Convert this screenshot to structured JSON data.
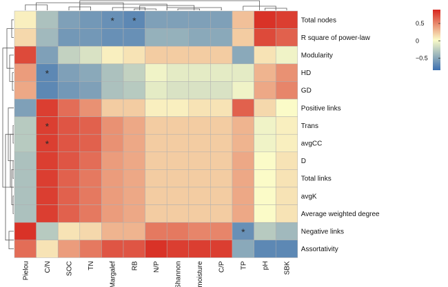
{
  "chart_data": {
    "type": "heatmap",
    "title": "",
    "rows": [
      "Total nodes",
      "R square of power-law",
      "Modularity",
      "HD",
      "GD",
      "Positive links",
      "Trans",
      "avgCC",
      "D",
      "Total links",
      "avgK",
      "Average weighted degree",
      "Negative links",
      "Assortativity"
    ],
    "columns": [
      "Pielou",
      "C/N",
      "SOC",
      "TN",
      "Margalef",
      "RB",
      "N/P",
      "Shannon",
      "moisture",
      "C/P",
      "TP",
      "pH",
      "SBK"
    ],
    "values": [
      [
        0.05,
        -0.35,
        -0.55,
        -0.6,
        -0.65,
        -0.7,
        -0.55,
        -0.55,
        -0.55,
        -0.55,
        0.25,
        0.85,
        0.8
      ],
      [
        0.15,
        -0.4,
        -0.6,
        -0.6,
        -0.65,
        -0.65,
        -0.45,
        -0.45,
        -0.5,
        -0.5,
        0.2,
        0.75,
        0.65
      ],
      [
        0.75,
        -0.55,
        -0.25,
        -0.15,
        0.05,
        0.1,
        0.2,
        0.2,
        0.2,
        0.2,
        -0.5,
        0.1,
        -0.05
      ],
      [
        0.4,
        -0.7,
        -0.55,
        -0.5,
        -0.35,
        -0.25,
        -0.05,
        -0.1,
        -0.1,
        -0.1,
        -0.1,
        0.3,
        0.45
      ],
      [
        0.35,
        -0.7,
        -0.6,
        -0.55,
        -0.35,
        -0.3,
        -0.1,
        -0.15,
        -0.15,
        -0.15,
        -0.05,
        0.35,
        0.5
      ],
      [
        -0.55,
        0.8,
        0.6,
        0.45,
        0.2,
        0.2,
        0.05,
        0.05,
        0.1,
        0.1,
        0.65,
        0.15,
        0.0
      ],
      [
        -0.3,
        0.8,
        0.7,
        0.65,
        0.45,
        0.35,
        0.2,
        0.2,
        0.2,
        0.2,
        0.3,
        -0.05,
        0.05
      ],
      [
        -0.3,
        0.8,
        0.7,
        0.65,
        0.45,
        0.35,
        0.2,
        0.2,
        0.2,
        0.2,
        0.3,
        -0.05,
        0.05
      ],
      [
        -0.35,
        0.8,
        0.7,
        0.6,
        0.4,
        0.35,
        0.2,
        0.2,
        0.2,
        0.2,
        0.35,
        0.0,
        0.1
      ],
      [
        -0.35,
        0.8,
        0.65,
        0.55,
        0.4,
        0.35,
        0.2,
        0.2,
        0.2,
        0.2,
        0.35,
        0.0,
        0.1
      ],
      [
        -0.35,
        0.8,
        0.65,
        0.55,
        0.4,
        0.35,
        0.2,
        0.2,
        0.2,
        0.2,
        0.35,
        0.0,
        0.1
      ],
      [
        -0.35,
        0.8,
        0.65,
        0.55,
        0.4,
        0.35,
        0.2,
        0.2,
        0.2,
        0.2,
        0.35,
        0.0,
        0.1
      ],
      [
        0.85,
        -0.3,
        0.1,
        0.15,
        0.3,
        0.3,
        0.55,
        0.55,
        0.5,
        0.5,
        -0.65,
        -0.3,
        -0.4
      ],
      [
        0.6,
        0.1,
        0.4,
        0.55,
        0.7,
        0.7,
        0.85,
        0.8,
        0.8,
        0.8,
        -0.5,
        -0.7,
        -0.7
      ]
    ],
    "significance": [
      {
        "row": "Total nodes",
        "column": "Margalef",
        "mark": "*"
      },
      {
        "row": "Total nodes",
        "column": "RB",
        "mark": "*"
      },
      {
        "row": "HD",
        "column": "C/N",
        "mark": "*"
      },
      {
        "row": "Trans",
        "column": "C/N",
        "mark": "*"
      },
      {
        "row": "avgCC",
        "column": "C/N",
        "mark": "*"
      },
      {
        "row": "Negative links",
        "column": "TP",
        "mark": "*"
      }
    ],
    "legend": {
      "ticks": [
        {
          "value": 0.5,
          "label": "0.5"
        },
        {
          "value": 0,
          "label": "0"
        },
        {
          "value": -0.5,
          "label": "−0.5"
        }
      ],
      "range": [
        -0.85,
        0.9
      ],
      "colors": {
        "low": "#3b6fb0",
        "mid": "#fbfbc8",
        "high": "#d7261e"
      }
    },
    "row_dendrogram": true,
    "column_dendrogram": true
  }
}
